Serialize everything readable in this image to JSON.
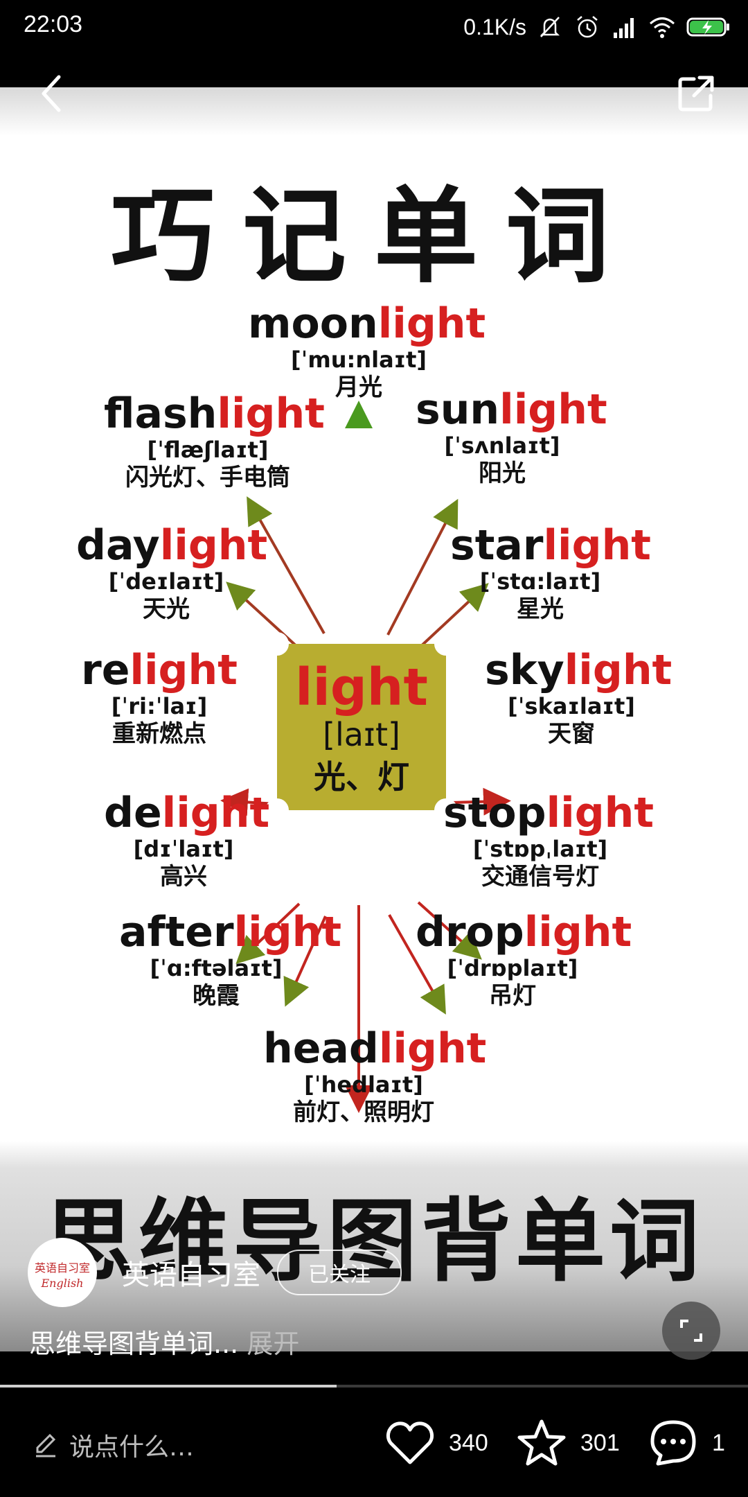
{
  "status_bar": {
    "time": "22:03",
    "net_speed": "0.1K/s",
    "icons": [
      "bell-off-icon",
      "alarm-icon",
      "signal-icon",
      "wifi-icon",
      "battery-charging-icon"
    ]
  },
  "nav": {
    "back_icon": "chevron-left-icon",
    "share_icon": "share-icon"
  },
  "poster": {
    "title": "巧记单词",
    "subtitle": "思维导图背单词",
    "center": {
      "word": "light",
      "ipa": "[laɪt]",
      "cn": "光、灯"
    },
    "nodes": [
      {
        "id": "moonlight",
        "prefix": "moon",
        "suffix": "light",
        "ipa": "[ˈmu:nlaɪt]",
        "cn": "月光"
      },
      {
        "id": "flashlight",
        "prefix": "flash",
        "suffix": "light",
        "ipa": "[ˈflæʃlaɪt]",
        "cn": "闪光灯、手电筒"
      },
      {
        "id": "sunlight",
        "prefix": "sun",
        "suffix": "light",
        "ipa": "[ˈsʌnlaɪt]",
        "cn": "阳光"
      },
      {
        "id": "daylight",
        "prefix": "day",
        "suffix": "light",
        "ipa": "[ˈdeɪlaɪt]",
        "cn": "天光"
      },
      {
        "id": "starlight",
        "prefix": "star",
        "suffix": "light",
        "ipa": "[ˈstɑ:laɪt]",
        "cn": "星光"
      },
      {
        "id": "relight",
        "prefix": "re",
        "suffix": "light",
        "ipa": "[ˈri:ˈlaɪ]",
        "cn": "重新燃点"
      },
      {
        "id": "skylight",
        "prefix": "sky",
        "suffix": "light",
        "ipa": "[ˈskaɪlaɪt]",
        "cn": "天窗"
      },
      {
        "id": "delight",
        "prefix": "de",
        "suffix": "light",
        "ipa": "[dɪˈlaɪt]",
        "cn": "高兴"
      },
      {
        "id": "stoplight",
        "prefix": "stop",
        "suffix": "light",
        "ipa": "[ˈstɒpˌlaɪt]",
        "cn": "交通信号灯"
      },
      {
        "id": "afterlight",
        "prefix": "after",
        "suffix": "light",
        "ipa": "[ˈɑ:ftəlaɪt]",
        "cn": "晚霞"
      },
      {
        "id": "droplight",
        "prefix": "drop",
        "suffix": "light",
        "ipa": "[ˈdrɒplaɪt]",
        "cn": "吊灯"
      },
      {
        "id": "headlight",
        "prefix": "head",
        "suffix": "light",
        "ipa": "[ˈhedlaɪt]",
        "cn": "前灯、照明灯"
      }
    ]
  },
  "author": {
    "avatar_text_top": "英语自习室",
    "avatar_text_bottom": "English",
    "name": "英语自习室",
    "follow_label": "已关注"
  },
  "caption": {
    "text": "思维导图背单词...",
    "expand_label": " 展开"
  },
  "progress": {
    "fraction": 0.45
  },
  "bottom": {
    "comment_placeholder": "说点什么…",
    "likes": "340",
    "favorites": "301",
    "comments": "1"
  },
  "colors": {
    "accent_red": "#d62020",
    "center_box": "#b8ad30"
  }
}
